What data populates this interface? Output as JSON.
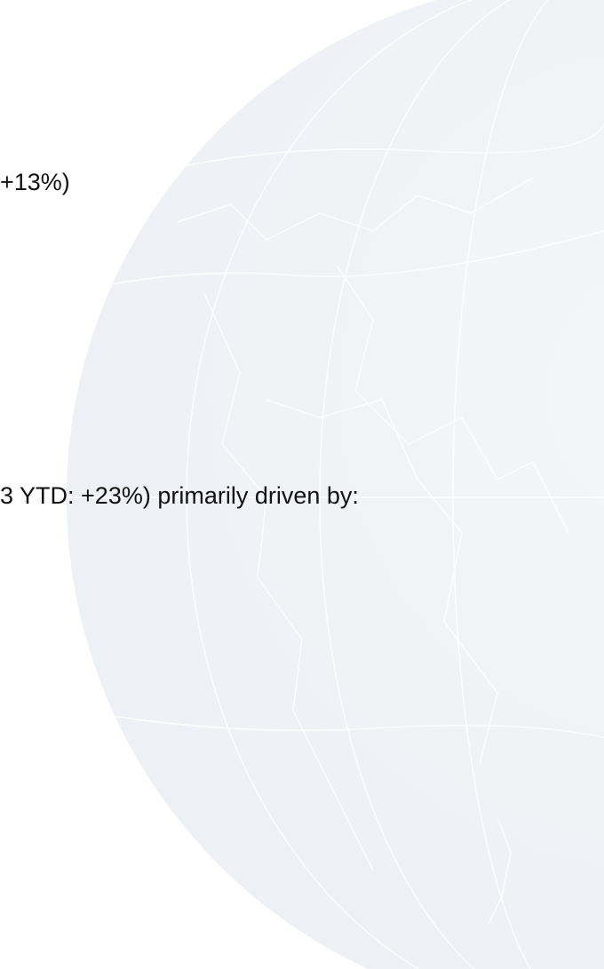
{
  "lines": [
    "+13%)",
    "3 YTD: +23%) primarily driven by:"
  ]
}
